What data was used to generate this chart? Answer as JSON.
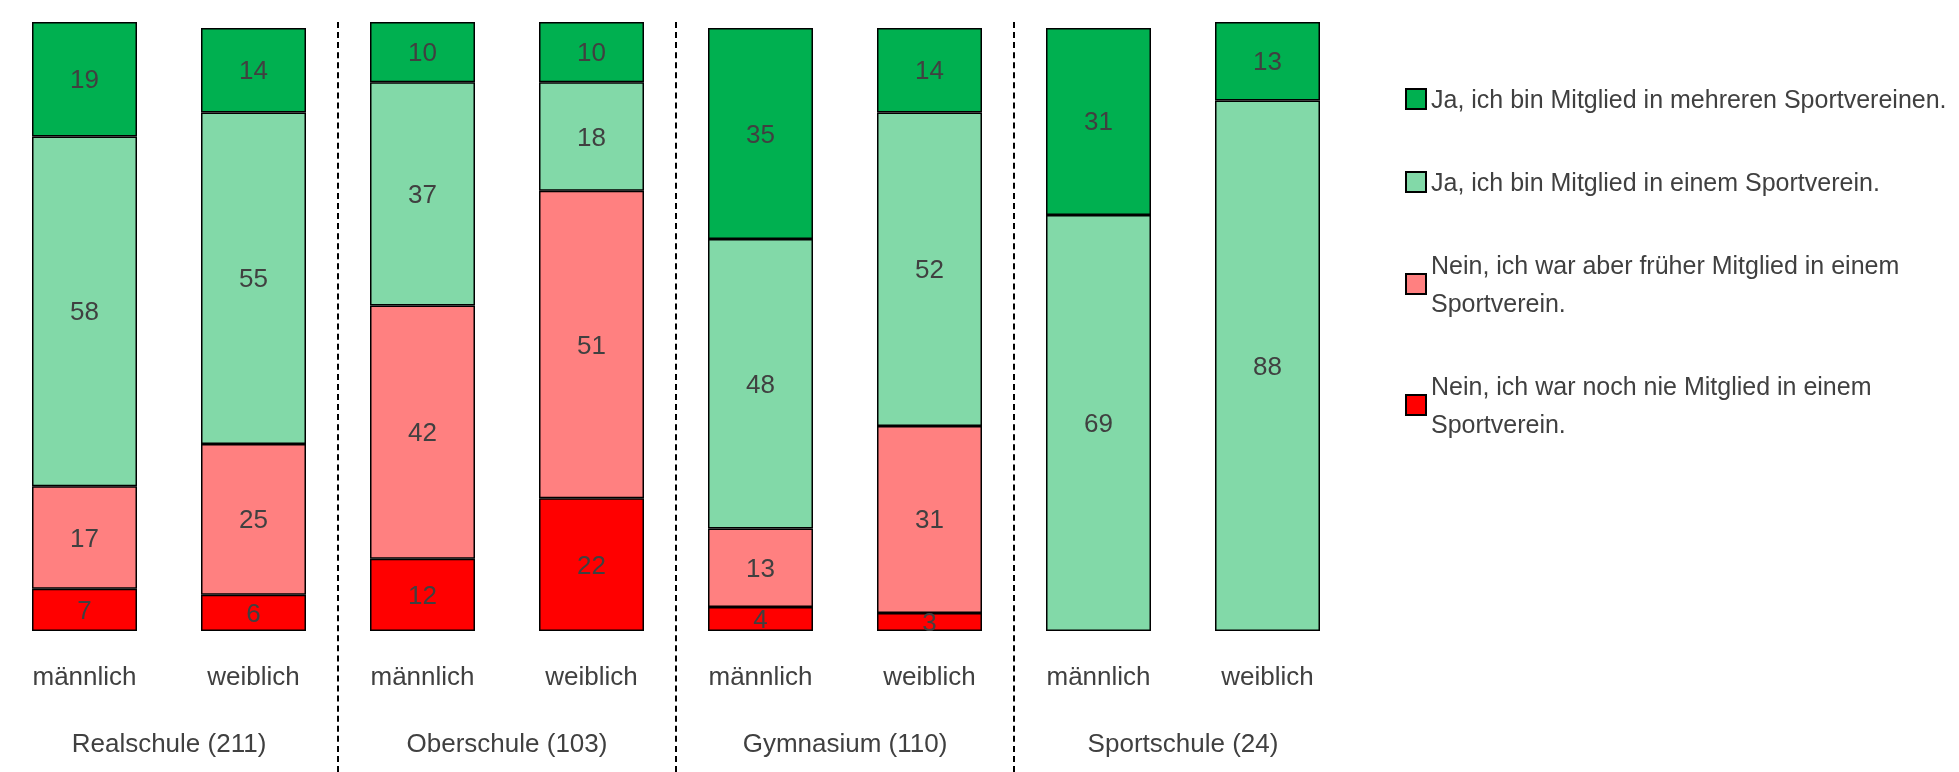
{
  "chart_data": {
    "type": "bar",
    "stacked": true,
    "data_labels": true,
    "legend": "right",
    "categories": [
      "männlich",
      "weiblich",
      "männlich",
      "weiblich",
      "männlich",
      "weiblich",
      "männlich",
      "weiblich"
    ],
    "annotations": [
      "Realschule (211)",
      "Oberschule (103)",
      "Gymnasium (110)",
      "Sportschule (24)"
    ],
    "series": [
      {
        "name": "Nein, ich war noch nie Mitglied in einem Sportverein.",
        "color": "#ff0000",
        "values": [
          7,
          6,
          12,
          22,
          4,
          3,
          null,
          null
        ]
      },
      {
        "name": "Nein, ich war aber früher Mitglied in einem Sportverein.",
        "color": "#ff8080",
        "values": [
          17,
          25,
          42,
          51,
          13,
          31,
          null,
          null
        ]
      },
      {
        "name": "Ja, ich bin Mitglied in einem Sportverein.",
        "color": "#82d9a8",
        "values": [
          58,
          55,
          37,
          18,
          48,
          52,
          69,
          88
        ]
      },
      {
        "name": "Ja, ich bin Mitglied in mehreren Sportvereinen.",
        "color": "#00b050",
        "values": [
          19,
          14,
          10,
          10,
          35,
          14,
          31,
          13
        ]
      }
    ]
  }
}
